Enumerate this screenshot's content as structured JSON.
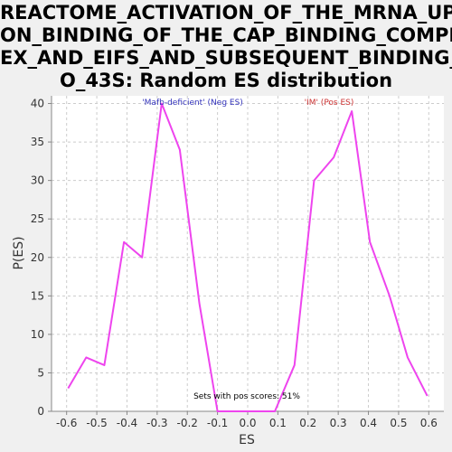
{
  "chart_data": {
    "type": "line",
    "title_lines": [
      "REACTOME_ACTIVATION_OF_THE_MRNA_UP",
      "ON_BINDING_OF_THE_CAP_BINDING_COMPL",
      "EX_AND_EIFS_AND_SUBSEQUENT_BINDING_T",
      "O_43S: Random ES distribution"
    ],
    "xlabel": "ES",
    "ylabel": "P(ES)",
    "xlim": [
      -0.65,
      0.65
    ],
    "ylim": [
      0,
      41
    ],
    "xticks": [
      "-0.6",
      "-0.5",
      "-0.4",
      "-0.3",
      "-0.2",
      "-0.1",
      "0.0",
      "0.1",
      "0.2",
      "0.3",
      "0.4",
      "0.5",
      "0.6"
    ],
    "xtick_values": [
      -0.6,
      -0.5,
      -0.4,
      -0.3,
      -0.2,
      -0.1,
      0.0,
      0.1,
      0.2,
      0.3,
      0.4,
      0.5,
      0.6
    ],
    "yticks": [
      "0",
      "5",
      "10",
      "15",
      "20",
      "25",
      "30",
      "35",
      "40"
    ],
    "ytick_values": [
      0,
      5,
      10,
      15,
      20,
      25,
      30,
      35,
      40
    ],
    "grid": true,
    "series": [
      {
        "color": "#ee44ee",
        "x": [
          -0.595,
          -0.535,
          -0.475,
          -0.41,
          -0.35,
          -0.285,
          -0.225,
          -0.16,
          -0.1,
          -0.04,
          0.02,
          0.09,
          0.155,
          0.22,
          0.285,
          0.345,
          0.405,
          0.47,
          0.53,
          0.595
        ],
        "y": [
          3,
          7,
          6,
          22,
          20,
          40,
          34,
          14,
          0,
          0,
          0,
          0,
          6,
          30,
          33,
          39,
          22,
          15,
          7,
          2
        ]
      }
    ],
    "annotations": {
      "neg": {
        "text": "'Mafb-deficient' (Neg ES)",
        "color": "#3333bb"
      },
      "pos": {
        "text": "'IM' (Pos ES)",
        "color": "#cc3333"
      },
      "footer": {
        "text": "Sets with pos scores: 51%",
        "color": "#000000"
      }
    }
  }
}
